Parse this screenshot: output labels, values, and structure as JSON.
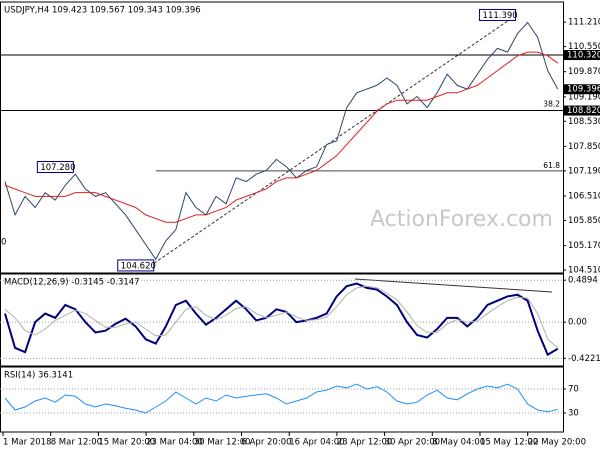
{
  "chart_data": [
    {
      "type": "line",
      "title": "USDJPY,H4 109.423 109.567 109.343 109.396",
      "watermark": "ActionForex.com",
      "left_label": "0",
      "xtick_labels": [
        "1 Mar 2018",
        "8 Mar 12:00",
        "15 Mar 20:00",
        "23 Mar 04:00",
        "30 Mar 12:00",
        "6 Apr 20:00",
        "16 Apr 04:00",
        "23 Apr 12:00",
        "30 Apr 20:00",
        "8 May 04:00",
        "15 May 12:00",
        "22 May 20:00"
      ],
      "ylim": [
        104.456,
        111.727
      ],
      "yticks": [
        {
          "value": 111.21,
          "label": "111.210"
        },
        {
          "value": 110.55,
          "label": "110.550"
        },
        {
          "value": 109.87,
          "label": "109.870"
        },
        {
          "value": 109.19,
          "label": "109.190"
        },
        {
          "value": 108.53,
          "label": "108.530"
        },
        {
          "value": 107.85,
          "label": "107.850"
        },
        {
          "value": 107.19,
          "label": "107.190"
        },
        {
          "value": 106.51,
          "label": "106.510"
        },
        {
          "value": 105.85,
          "label": "105.850"
        },
        {
          "value": 105.17,
          "label": "105.170"
        },
        {
          "value": 104.51,
          "label": "104.510"
        }
      ],
      "series": [
        {
          "color": "#2c4766",
          "values": [
            106.9,
            106.0,
            106.5,
            106.2,
            106.6,
            106.4,
            106.8,
            107.1,
            106.7,
            106.5,
            106.6,
            106.3,
            106.0,
            105.6,
            105.2,
            104.8,
            105.3,
            105.6,
            106.6,
            106.2,
            106.0,
            106.5,
            106.3,
            107.0,
            106.9,
            107.1,
            107.2,
            107.5,
            107.3,
            107.0,
            107.2,
            107.3,
            107.9,
            108.0,
            108.9,
            109.3,
            109.4,
            109.5,
            109.7,
            109.5,
            109.0,
            109.2,
            108.9,
            109.3,
            109.8,
            109.5,
            109.4,
            109.8,
            110.2,
            110.5,
            110.4,
            110.9,
            111.2,
            110.8,
            109.9,
            109.4
          ]
        },
        {
          "color": "#e02020",
          "values": [
            106.8,
            106.7,
            106.6,
            106.5,
            106.5,
            106.5,
            106.5,
            106.6,
            106.6,
            106.6,
            106.5,
            106.4,
            106.3,
            106.2,
            106.0,
            105.9,
            105.8,
            105.8,
            105.9,
            106.0,
            106.0,
            106.1,
            106.2,
            106.4,
            106.5,
            106.6,
            106.7,
            106.9,
            107.0,
            107.0,
            107.1,
            107.2,
            107.4,
            107.6,
            107.9,
            108.2,
            108.5,
            108.8,
            109.0,
            109.1,
            109.1,
            109.1,
            109.1,
            109.2,
            109.3,
            109.3,
            109.4,
            109.5,
            109.7,
            109.9,
            110.1,
            110.3,
            110.4,
            110.4,
            110.3,
            110.1
          ]
        }
      ],
      "levels": [
        {
          "value": 110.32,
          "label": "110.320"
        },
        {
          "value": 108.82,
          "label": "108.820"
        }
      ],
      "price_label": {
        "value": 109.396,
        "label": "109.396"
      },
      "fib_levels": [
        {
          "value": 107.19,
          "label": "61.8"
        },
        {
          "value": 108.85,
          "label": "38.2"
        }
      ],
      "annotations": [
        {
          "label": "107.280",
          "value": 107.28,
          "index": 7
        },
        {
          "label": "104.620",
          "value": 104.62,
          "index": 15
        },
        {
          "label": "111.390",
          "value": 111.39,
          "index": 51
        }
      ]
    },
    {
      "type": "line",
      "title": "MACD(12,26,9) -0.3145 -0.3147",
      "ylim": [
        -0.5,
        0.55
      ],
      "yticks": [
        0.4894,
        {
          "value": 0,
          "label": "0.00"
        },
        -0.4221
      ],
      "series": [
        {
          "color": "#00007a",
          "values": [
            0.1,
            -0.3,
            -0.35,
            0.0,
            0.1,
            0.05,
            0.2,
            0.15,
            0.0,
            -0.12,
            -0.1,
            -0.02,
            0.04,
            -0.05,
            -0.2,
            -0.25,
            -0.05,
            0.2,
            0.25,
            0.1,
            -0.03,
            0.05,
            0.15,
            0.25,
            0.15,
            0.02,
            0.05,
            0.15,
            0.12,
            0.0,
            0.02,
            0.05,
            0.1,
            0.3,
            0.42,
            0.45,
            0.4,
            0.38,
            0.3,
            0.2,
            0.0,
            -0.15,
            -0.18,
            -0.08,
            0.05,
            0.05,
            -0.05,
            0.05,
            0.2,
            0.25,
            0.3,
            0.32,
            0.25,
            -0.1,
            -0.38,
            -0.31
          ]
        },
        {
          "color": "#b0b0b0",
          "values": [
            0.15,
            0.05,
            -0.1,
            -0.15,
            -0.08,
            0.02,
            0.08,
            0.14,
            0.1,
            0.02,
            -0.06,
            -0.06,
            -0.02,
            0.0,
            -0.08,
            -0.16,
            -0.15,
            0.0,
            0.15,
            0.18,
            0.08,
            0.03,
            0.08,
            0.16,
            0.18,
            0.1,
            0.05,
            0.08,
            0.12,
            0.06,
            0.02,
            0.03,
            0.06,
            0.18,
            0.32,
            0.4,
            0.42,
            0.4,
            0.34,
            0.26,
            0.12,
            -0.04,
            -0.12,
            -0.12,
            -0.02,
            0.03,
            0.0,
            0.01,
            0.1,
            0.18,
            0.25,
            0.29,
            0.28,
            0.1,
            -0.2,
            -0.3
          ]
        }
      ]
    },
    {
      "type": "line",
      "title": "RSI(14) 36.3141",
      "ylim": [
        0,
        105
      ],
      "yticks": [
        70,
        30
      ],
      "series": [
        {
          "color": "#1e90ff",
          "values": [
            55,
            35,
            40,
            50,
            55,
            48,
            60,
            58,
            45,
            40,
            45,
            42,
            38,
            35,
            30,
            40,
            50,
            65,
            55,
            45,
            55,
            50,
            60,
            55,
            58,
            60,
            62,
            55,
            45,
            50,
            55,
            65,
            68,
            75,
            72,
            78,
            70,
            74,
            65,
            50,
            45,
            48,
            60,
            68,
            55,
            52,
            62,
            70,
            75,
            72,
            78,
            70,
            45,
            35,
            32,
            36
          ]
        }
      ]
    }
  ]
}
